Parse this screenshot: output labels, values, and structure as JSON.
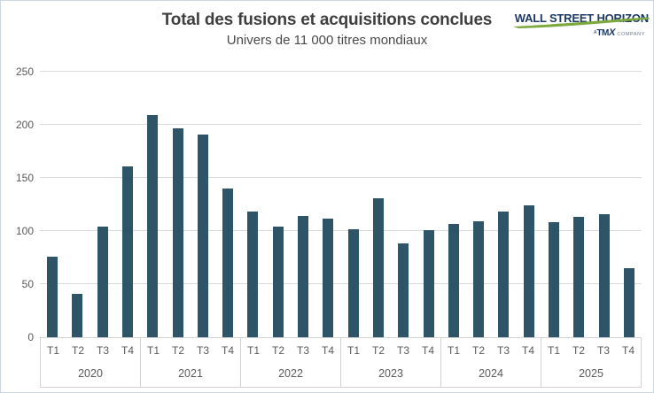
{
  "header": {
    "title": "Total des fusions et acquisitions conclues",
    "subtitle": "Univers de 11 000 titres mondiaux"
  },
  "logo": {
    "brand": "WALL STREET HORIZON",
    "tagline_prefix": "A",
    "tagline_brand_tm": "TM",
    "tagline_brand_x": "X",
    "tagline_suffix": "COMPANY",
    "brand_color": "#1e3a66",
    "swoosh_color": "#7ca83d"
  },
  "chart_data": {
    "type": "bar",
    "title": "Total des fusions et acquisitions conclues",
    "subtitle": "Univers de 11 000 titres mondiaux",
    "bar_color": "#2e5468",
    "grid_color": "#d9d9d9",
    "axis_text_color": "#595959",
    "ylim": [
      0,
      250
    ],
    "y_ticks": [
      0,
      50,
      100,
      150,
      200,
      250
    ],
    "grid": true,
    "legend": false,
    "quarter_labels": [
      "T1",
      "T2",
      "T3",
      "T4"
    ],
    "groups": [
      {
        "year": "2020",
        "values": [
          76,
          41,
          104,
          161
        ]
      },
      {
        "year": "2021",
        "values": [
          209,
          197,
          191,
          140
        ]
      },
      {
        "year": "2022",
        "values": [
          118,
          104,
          114,
          112
        ]
      },
      {
        "year": "2023",
        "values": [
          102,
          131,
          88,
          101
        ]
      },
      {
        "year": "2024",
        "values": [
          107,
          109,
          118,
          124
        ]
      },
      {
        "year": "2025",
        "values": [
          108,
          113,
          116,
          65
        ]
      }
    ]
  }
}
